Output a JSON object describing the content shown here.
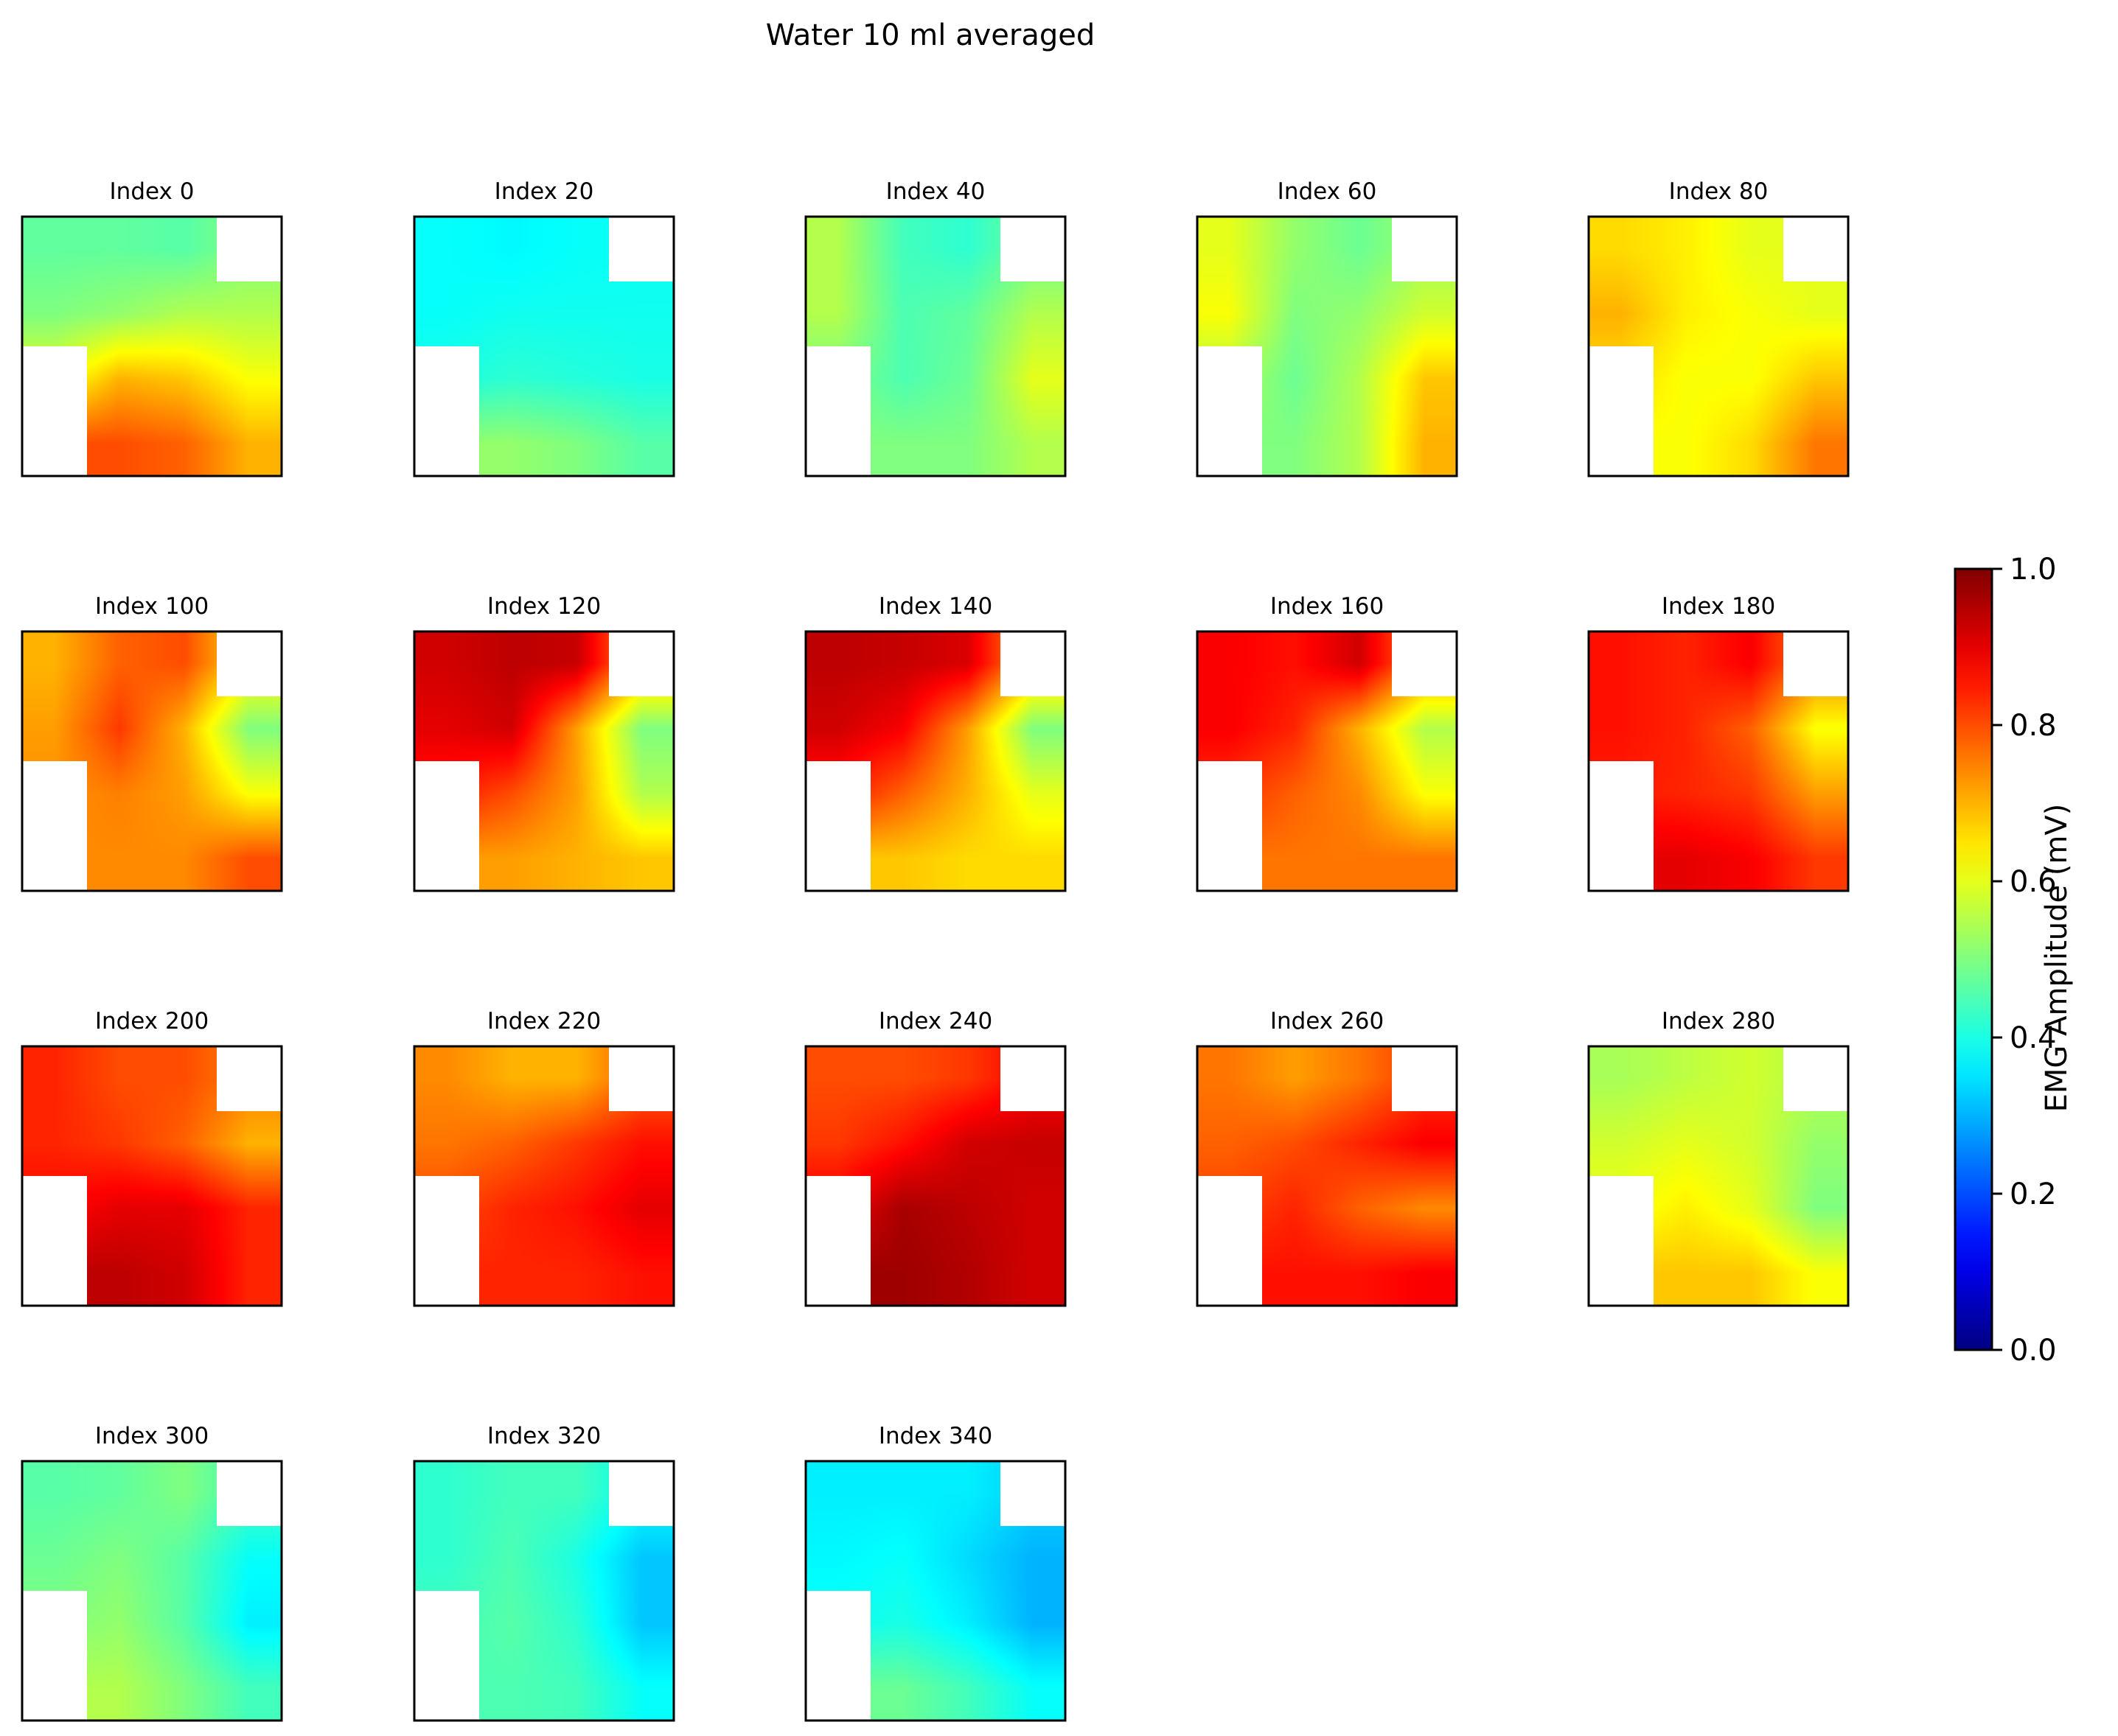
{
  "figure": {
    "suptitle": "Water 10 ml averaged",
    "colorbar": {
      "label": "EMG Amplitude (mV)",
      "ticks": [
        "0.0",
        "0.2",
        "0.4",
        "0.6",
        "0.8",
        "1.0"
      ],
      "colormap": "jet",
      "range": [
        0.0,
        1.0
      ]
    }
  },
  "chart_data": {
    "type": "heatmap",
    "title": "Water 10 ml averaged",
    "grid_rows": 4,
    "grid_cols": 4,
    "masked_cells": [
      [
        0,
        3
      ],
      [
        2,
        0
      ],
      [
        3,
        0
      ]
    ],
    "colorbar_label": "EMG Amplitude (mV)",
    "vmin": 0.0,
    "vmax": 1.0,
    "colormap": "jet",
    "panels": [
      {
        "title": "Index 0",
        "values": [
          [
            0.47,
            0.47,
            0.46,
            null
          ],
          [
            0.5,
            0.52,
            0.55,
            0.55
          ],
          [
            null,
            0.7,
            0.68,
            0.62
          ],
          [
            null,
            0.8,
            0.78,
            0.7
          ]
        ]
      },
      {
        "title": "Index 20",
        "values": [
          [
            0.38,
            0.37,
            0.38,
            null
          ],
          [
            0.38,
            0.39,
            0.39,
            0.39
          ],
          [
            null,
            0.42,
            0.41,
            0.4
          ],
          [
            null,
            0.52,
            0.5,
            0.46
          ]
        ]
      },
      {
        "title": "Index 40",
        "values": [
          [
            0.55,
            0.44,
            0.42,
            null
          ],
          [
            0.55,
            0.45,
            0.47,
            0.55
          ],
          [
            null,
            0.45,
            0.48,
            0.6
          ],
          [
            null,
            0.5,
            0.5,
            0.55
          ]
        ]
      },
      {
        "title": "Index 60",
        "values": [
          [
            0.6,
            0.52,
            0.48,
            null
          ],
          [
            0.62,
            0.5,
            0.52,
            0.58
          ],
          [
            null,
            0.48,
            0.55,
            0.68
          ],
          [
            null,
            0.5,
            0.55,
            0.7
          ]
        ]
      },
      {
        "title": "Index 80",
        "values": [
          [
            0.66,
            0.64,
            0.6,
            null
          ],
          [
            0.7,
            0.64,
            0.62,
            0.6
          ],
          [
            null,
            0.62,
            0.62,
            0.68
          ],
          [
            null,
            0.62,
            0.66,
            0.76
          ]
        ]
      },
      {
        "title": "Index 100",
        "values": [
          [
            0.7,
            0.78,
            0.8,
            null
          ],
          [
            0.72,
            0.82,
            0.7,
            0.5
          ],
          [
            null,
            0.75,
            0.72,
            0.62
          ],
          [
            null,
            0.74,
            0.74,
            0.8
          ]
        ]
      },
      {
        "title": "Index 120",
        "values": [
          [
            0.92,
            0.94,
            0.93,
            null
          ],
          [
            0.9,
            0.92,
            0.72,
            0.5
          ],
          [
            null,
            0.8,
            0.72,
            0.55
          ],
          [
            null,
            0.72,
            0.7,
            0.68
          ]
        ]
      },
      {
        "title": "Index 140",
        "values": [
          [
            0.94,
            0.93,
            0.91,
            null
          ],
          [
            0.92,
            0.88,
            0.72,
            0.5
          ],
          [
            null,
            0.78,
            0.7,
            0.6
          ],
          [
            null,
            0.68,
            0.66,
            0.66
          ]
        ]
      },
      {
        "title": "Index 160",
        "values": [
          [
            0.88,
            0.86,
            0.92,
            null
          ],
          [
            0.88,
            0.84,
            0.7,
            0.55
          ],
          [
            null,
            0.78,
            0.74,
            0.62
          ],
          [
            null,
            0.76,
            0.76,
            0.76
          ]
        ]
      },
      {
        "title": "Index 180",
        "values": [
          [
            0.86,
            0.84,
            0.88,
            null
          ],
          [
            0.86,
            0.84,
            0.78,
            0.62
          ],
          [
            null,
            0.84,
            0.82,
            0.72
          ],
          [
            null,
            0.9,
            0.88,
            0.82
          ]
        ]
      },
      {
        "title": "Index 200",
        "values": [
          [
            0.84,
            0.8,
            0.8,
            null
          ],
          [
            0.84,
            0.82,
            0.78,
            0.7
          ],
          [
            null,
            0.9,
            0.9,
            0.84
          ],
          [
            null,
            0.94,
            0.92,
            0.84
          ]
        ]
      },
      {
        "title": "Index 220",
        "values": [
          [
            0.74,
            0.7,
            0.7,
            null
          ],
          [
            0.76,
            0.78,
            0.82,
            0.86
          ],
          [
            null,
            0.84,
            0.86,
            0.9
          ],
          [
            null,
            0.84,
            0.84,
            0.86
          ]
        ]
      },
      {
        "title": "Index 240",
        "values": [
          [
            0.8,
            0.8,
            0.82,
            null
          ],
          [
            0.82,
            0.86,
            0.92,
            0.93
          ],
          [
            null,
            0.96,
            0.94,
            0.92
          ],
          [
            null,
            0.97,
            0.95,
            0.92
          ]
        ]
      },
      {
        "title": "Index 260",
        "values": [
          [
            0.76,
            0.72,
            0.76,
            null
          ],
          [
            0.78,
            0.8,
            0.84,
            0.88
          ],
          [
            null,
            0.84,
            0.78,
            0.74
          ],
          [
            null,
            0.86,
            0.86,
            0.88
          ]
        ]
      },
      {
        "title": "Index 280",
        "values": [
          [
            0.54,
            0.56,
            0.58,
            null
          ],
          [
            0.58,
            0.6,
            0.58,
            0.52
          ],
          [
            null,
            0.64,
            0.6,
            0.5
          ],
          [
            null,
            0.68,
            0.68,
            0.62
          ]
        ]
      },
      {
        "title": "Index 300",
        "values": [
          [
            0.46,
            0.47,
            0.5,
            null
          ],
          [
            0.48,
            0.5,
            0.46,
            0.38
          ],
          [
            null,
            0.52,
            0.46,
            0.36
          ],
          [
            null,
            0.55,
            0.5,
            0.44
          ]
        ]
      },
      {
        "title": "Index 320",
        "values": [
          [
            0.42,
            0.44,
            0.44,
            null
          ],
          [
            0.42,
            0.45,
            0.4,
            0.32
          ],
          [
            null,
            0.46,
            0.42,
            0.32
          ],
          [
            null,
            0.45,
            0.44,
            0.38
          ]
        ]
      },
      {
        "title": "Index 340",
        "values": [
          [
            0.36,
            0.36,
            0.36,
            null
          ],
          [
            0.37,
            0.38,
            0.34,
            0.3
          ],
          [
            null,
            0.4,
            0.36,
            0.3
          ],
          [
            null,
            0.48,
            0.44,
            0.38
          ]
        ]
      }
    ]
  }
}
